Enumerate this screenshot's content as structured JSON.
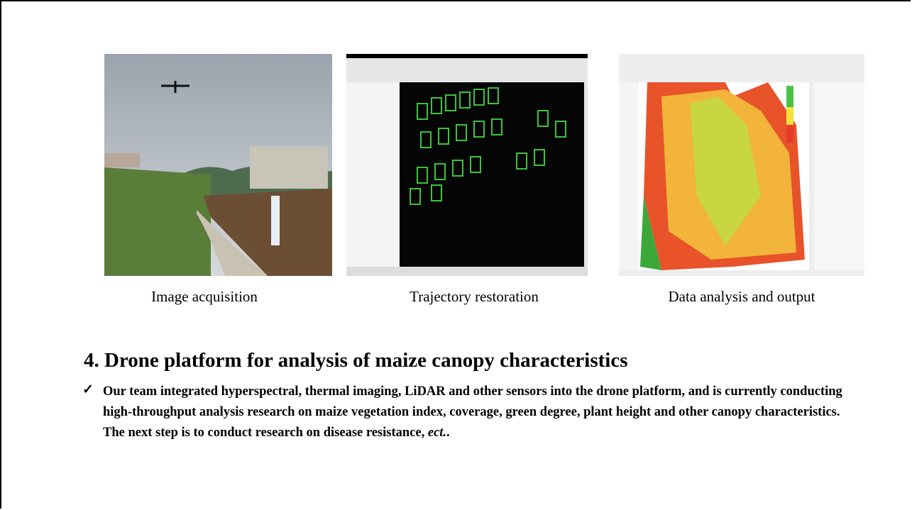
{
  "figures": [
    {
      "caption": "Image acquisition"
    },
    {
      "caption": "Trajectory restoration"
    },
    {
      "caption": "Data analysis and output"
    }
  ],
  "section": {
    "title": "4. Drone platform for analysis of maize canopy characteristics",
    "bullet": "✓",
    "text": "Our team integrated hyperspectral, thermal imaging, LiDAR and other sensors into the drone platform, and is currently conducting high-throughput analysis research on maize vegetation index, coverage, green degree, plant height and other canopy characteristics. The next step is to conduct research on disease resistance, ",
    "text_italic": "ect.",
    "text_end": "."
  }
}
